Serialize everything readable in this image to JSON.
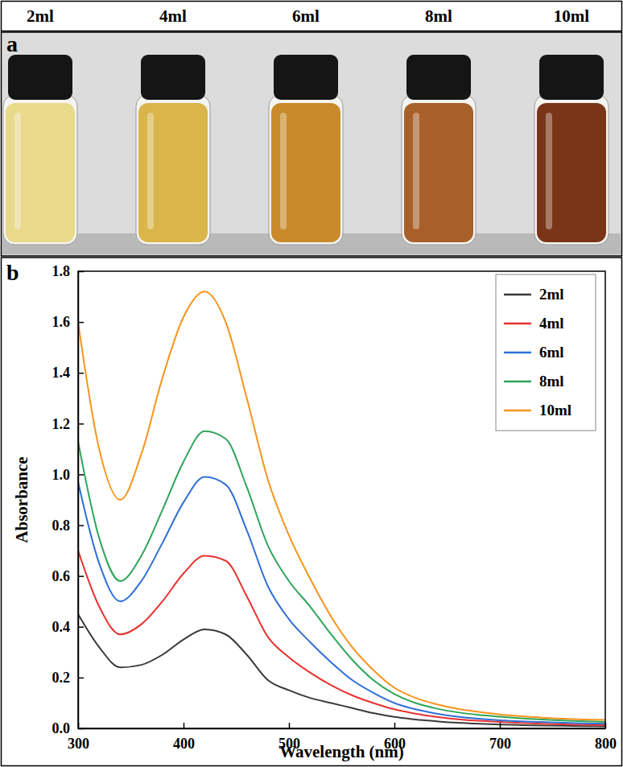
{
  "header": {
    "labels": [
      "2ml",
      "4ml",
      "6ml",
      "8ml",
      "10ml"
    ]
  },
  "photo": {
    "label": "a",
    "colors": [
      "#e9d98a",
      "#d9b54a",
      "#c98a2a",
      "#a8602a",
      "#7a3518"
    ]
  },
  "chart_data": {
    "type": "line",
    "panel_label": "b",
    "x_label": "Wavelength (nm)",
    "y_label": "Absorbance",
    "x": [
      300,
      320,
      340,
      360,
      380,
      400,
      420,
      440,
      460,
      480,
      500,
      520,
      540,
      560,
      580,
      600,
      620,
      640,
      660,
      680,
      700,
      720,
      740,
      760,
      780,
      800
    ],
    "series": [
      {
        "name": "2ml",
        "color": "#3a3a3a",
        "values": [
          0.45,
          0.32,
          0.24,
          0.25,
          0.29,
          0.35,
          0.39,
          0.37,
          0.29,
          0.19,
          0.15,
          0.12,
          0.1,
          0.08,
          0.06,
          0.045,
          0.035,
          0.028,
          0.022,
          0.018,
          0.015,
          0.013,
          0.011,
          0.01,
          0.009,
          0.008
        ]
      },
      {
        "name": "4ml",
        "color": "#e8322f",
        "values": [
          0.7,
          0.48,
          0.37,
          0.41,
          0.5,
          0.61,
          0.68,
          0.66,
          0.52,
          0.36,
          0.28,
          0.22,
          0.17,
          0.13,
          0.1,
          0.075,
          0.058,
          0.045,
          0.036,
          0.03,
          0.025,
          0.021,
          0.018,
          0.016,
          0.014,
          0.013
        ]
      },
      {
        "name": "6ml",
        "color": "#2f6fd6",
        "values": [
          0.97,
          0.65,
          0.5,
          0.58,
          0.73,
          0.89,
          0.99,
          0.96,
          0.78,
          0.56,
          0.43,
          0.34,
          0.26,
          0.19,
          0.14,
          0.1,
          0.075,
          0.058,
          0.046,
          0.038,
          0.032,
          0.028,
          0.025,
          0.022,
          0.02,
          0.018
        ]
      },
      {
        "name": "8ml",
        "color": "#2ea55a",
        "values": [
          1.13,
          0.75,
          0.58,
          0.68,
          0.86,
          1.05,
          1.17,
          1.14,
          0.95,
          0.72,
          0.58,
          0.48,
          0.37,
          0.27,
          0.19,
          0.135,
          0.1,
          0.078,
          0.063,
          0.053,
          0.046,
          0.04,
          0.035,
          0.031,
          0.028,
          0.025
        ]
      },
      {
        "name": "10ml",
        "color": "#f7941d",
        "values": [
          1.6,
          1.1,
          0.9,
          1.08,
          1.38,
          1.62,
          1.72,
          1.6,
          1.3,
          0.98,
          0.76,
          0.59,
          0.44,
          0.32,
          0.23,
          0.16,
          0.12,
          0.095,
          0.077,
          0.065,
          0.055,
          0.048,
          0.042,
          0.038,
          0.035,
          0.033
        ]
      }
    ],
    "xlim": [
      300,
      800
    ],
    "xticks": [
      300,
      400,
      500,
      600,
      700,
      800
    ],
    "ylim": [
      0,
      1.8
    ],
    "yticks": [
      {
        "value": 0,
        "label": "0.0"
      },
      0.2,
      0.4,
      0.6,
      0.8,
      {
        "value": 1,
        "label": "1.0"
      },
      1.2,
      1.4,
      1.6,
      1.8
    ],
    "legend": "top-right"
  }
}
